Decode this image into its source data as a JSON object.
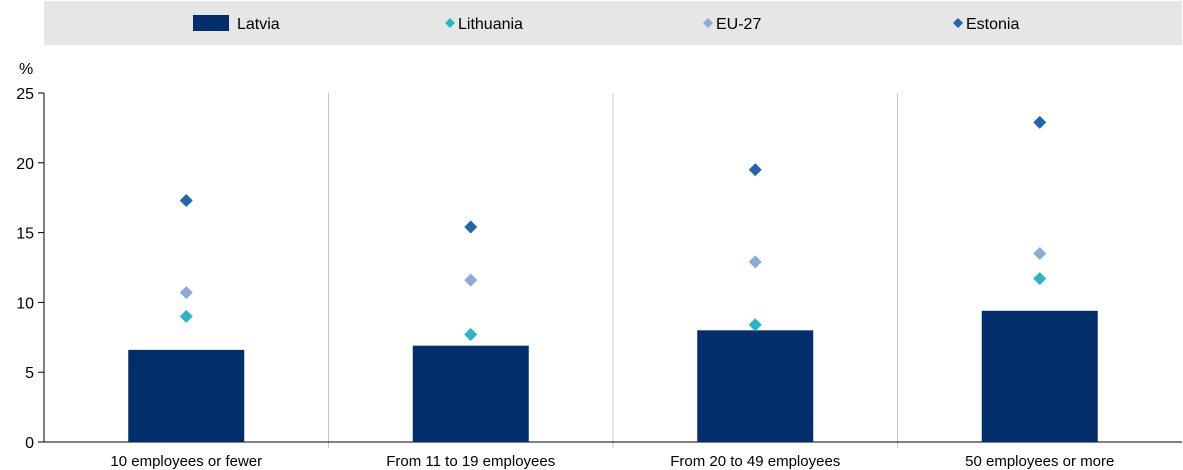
{
  "chart_data": {
    "type": "bar",
    "ylabel": "%",
    "ylim": [
      0,
      25
    ],
    "yticks": [
      0,
      5,
      10,
      15,
      20,
      25
    ],
    "grid": "vertical separators between categories",
    "legend_position": "top",
    "categories": [
      "10 employees or fewer",
      "From 11 to 19 employees",
      "From 20 to 49 employees",
      "50 employees or more"
    ],
    "series": [
      {
        "name": "Latvia",
        "mark": "bar",
        "color": "#002f6c",
        "values": [
          6.6,
          6.9,
          8.0,
          9.4
        ]
      },
      {
        "name": "Lithuania",
        "mark": "diamond",
        "color": "#27b6c4",
        "values": [
          9.0,
          7.7,
          8.4,
          11.7
        ]
      },
      {
        "name": "EU-27",
        "mark": "diamond",
        "color": "#8caad8",
        "values": [
          10.7,
          11.6,
          12.9,
          13.5
        ]
      },
      {
        "name": "Estonia",
        "mark": "diamond",
        "color": "#1f66ad",
        "values": [
          17.3,
          15.4,
          19.5,
          22.9
        ]
      }
    ]
  },
  "colors": {
    "legend_bg": "#e6e6e6",
    "axis": "#000000",
    "separator": "#c8c8c8"
  }
}
